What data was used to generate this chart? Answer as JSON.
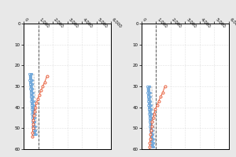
{
  "xlim": [
    0,
    6000
  ],
  "ylim": [
    60,
    0
  ],
  "xticks": [
    0,
    1000,
    2000,
    3000,
    4000,
    5000,
    6000
  ],
  "yticks": [
    0,
    10,
    20,
    30,
    40,
    50,
    60
  ],
  "dashed_line_x": 1000,
  "left_plot": {
    "blue_series": [
      {
        "y": [
          24,
          27,
          29,
          31,
          33,
          35,
          37,
          39,
          41,
          43,
          45,
          47,
          49,
          51,
          53
        ],
        "x": [
          560,
          580,
          600,
          620,
          640,
          660,
          680,
          700,
          720,
          740,
          760,
          780,
          800,
          820,
          840
        ]
      },
      {
        "y": [
          24,
          27,
          29,
          31,
          33,
          35,
          37,
          39,
          41,
          43,
          45,
          47,
          49,
          51,
          53
        ],
        "x": [
          530,
          550,
          570,
          590,
          610,
          630,
          650,
          670,
          690,
          710,
          730,
          750,
          770,
          790,
          810
        ]
      },
      {
        "y": [
          24,
          27,
          29,
          31,
          33,
          35,
          37,
          39,
          41,
          43,
          45,
          47,
          49,
          51,
          53
        ],
        "x": [
          500,
          520,
          540,
          560,
          580,
          600,
          620,
          640,
          660,
          680,
          700,
          720,
          740,
          760,
          780
        ]
      },
      {
        "y": [
          24,
          27,
          29,
          31,
          33,
          35,
          37,
          39,
          41,
          43,
          45,
          47,
          49,
          51,
          53
        ],
        "x": [
          470,
          490,
          510,
          530,
          550,
          570,
          590,
          610,
          630,
          650,
          670,
          690,
          710,
          730,
          750
        ]
      },
      {
        "y": [
          24,
          27,
          29,
          31,
          33,
          35,
          37,
          39,
          41,
          43,
          45,
          47,
          49,
          51,
          53
        ],
        "x": [
          440,
          460,
          480,
          500,
          520,
          540,
          560,
          580,
          600,
          620,
          640,
          660,
          680,
          700,
          720
        ]
      },
      {
        "y": [
          24,
          27,
          29,
          31,
          33,
          35,
          37,
          39,
          41,
          43,
          45,
          47,
          49,
          51,
          53
        ],
        "x": [
          410,
          430,
          450,
          470,
          490,
          510,
          530,
          550,
          570,
          590,
          610,
          630,
          650,
          670,
          690
        ]
      },
      {
        "y": [
          24,
          27,
          29,
          31,
          33,
          35,
          37,
          39,
          41,
          43,
          45,
          47,
          49,
          51,
          53
        ],
        "x": [
          380,
          400,
          420,
          440,
          460,
          480,
          500,
          520,
          540,
          560,
          580,
          600,
          620,
          640,
          660
        ]
      }
    ],
    "gray_series": {
      "y": [
        24,
        27,
        29,
        31,
        33,
        35,
        37,
        39,
        41,
        43,
        45,
        47,
        49,
        51,
        53
      ],
      "x": [
        700,
        720,
        740,
        760,
        780,
        800,
        820,
        840,
        860,
        880,
        900,
        920,
        940,
        960,
        980
      ]
    },
    "orange_series": {
      "y": [
        25,
        28,
        30,
        32,
        34,
        36,
        38,
        40,
        42,
        44,
        46,
        48,
        50,
        52,
        54
      ],
      "x": [
        1600,
        1450,
        1300,
        1200,
        1080,
        970,
        880,
        800,
        740,
        700,
        670,
        650,
        630,
        615,
        600
      ]
    }
  },
  "right_plot": {
    "blue_series": [
      {
        "y": [
          30,
          33,
          35,
          37,
          39,
          41,
          43,
          45,
          47,
          49,
          51,
          53,
          55,
          57,
          59
        ],
        "x": [
          560,
          580,
          600,
          620,
          640,
          660,
          680,
          700,
          720,
          740,
          760,
          780,
          800,
          820,
          840
        ]
      },
      {
        "y": [
          30,
          33,
          35,
          37,
          39,
          41,
          43,
          45,
          47,
          49,
          51,
          53,
          55,
          57,
          59
        ],
        "x": [
          530,
          550,
          570,
          590,
          610,
          630,
          650,
          670,
          690,
          710,
          730,
          750,
          770,
          790,
          810
        ]
      },
      {
        "y": [
          30,
          33,
          35,
          37,
          39,
          41,
          43,
          45,
          47,
          49,
          51,
          53,
          55,
          57,
          59
        ],
        "x": [
          500,
          520,
          540,
          560,
          580,
          600,
          620,
          640,
          660,
          680,
          700,
          720,
          740,
          760,
          780
        ]
      },
      {
        "y": [
          30,
          33,
          35,
          37,
          39,
          41,
          43,
          45,
          47,
          49,
          51,
          53,
          55,
          57,
          59
        ],
        "x": [
          470,
          490,
          510,
          530,
          550,
          570,
          590,
          610,
          630,
          650,
          670,
          690,
          710,
          730,
          750
        ]
      },
      {
        "y": [
          30,
          33,
          35,
          37,
          39,
          41,
          43,
          45,
          47,
          49,
          51,
          53,
          55,
          57,
          59
        ],
        "x": [
          440,
          460,
          480,
          500,
          520,
          540,
          560,
          580,
          600,
          620,
          640,
          660,
          680,
          700,
          720
        ]
      },
      {
        "y": [
          30,
          33,
          35,
          37,
          39,
          41,
          43,
          45,
          47,
          49,
          51,
          53,
          55,
          57,
          59
        ],
        "x": [
          410,
          430,
          450,
          470,
          490,
          510,
          530,
          550,
          570,
          590,
          610,
          630,
          650,
          670,
          690
        ]
      },
      {
        "y": [
          30,
          33,
          35,
          37,
          39,
          41,
          43,
          45,
          47,
          49,
          51,
          53,
          55,
          57,
          59
        ],
        "x": [
          380,
          400,
          420,
          440,
          460,
          480,
          500,
          520,
          540,
          560,
          580,
          600,
          620,
          640,
          660
        ]
      }
    ],
    "gray_series": {
      "y": [
        30,
        33,
        35,
        37,
        39,
        41,
        43,
        45,
        47,
        49,
        51,
        53,
        55,
        57,
        59
      ],
      "x": [
        700,
        720,
        740,
        760,
        780,
        800,
        820,
        840,
        860,
        880,
        900,
        920,
        940,
        960,
        980
      ]
    },
    "orange_series": {
      "y": [
        30,
        33,
        35,
        37,
        39,
        41,
        43,
        45,
        47,
        49,
        51,
        53,
        55,
        57,
        59,
        61
      ],
      "x": [
        1600,
        1450,
        1300,
        1180,
        1060,
        940,
        860,
        790,
        730,
        680,
        650,
        620,
        600,
        570,
        555,
        540
      ]
    }
  },
  "blue_color": "#5B9BD5",
  "orange_color": "#E8603C",
  "gray_color": "#AAAAAA",
  "tick_fontsize": 4.0,
  "grid_color": "#C8C8C8",
  "bg_color": "#E8E8E8",
  "plot_bg": "#FFFFFF"
}
